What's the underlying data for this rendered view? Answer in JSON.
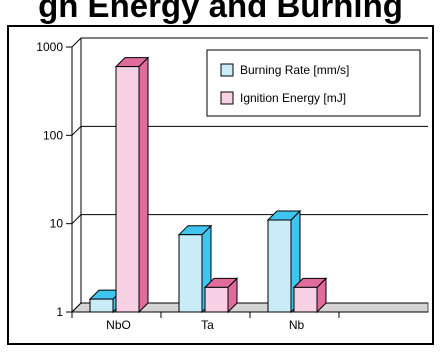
{
  "title_fragment": "gn  Energy and Burning",
  "colors": {
    "burning_front": "#c9ecf8",
    "burning_side": "#3fc5ef",
    "ignition_front": "#f8d2e4",
    "ignition_side": "#e06c9c",
    "floor": "#d4d4d4"
  },
  "chart_data": {
    "type": "bar",
    "scale": "log",
    "categories": [
      "NbO",
      "Ta",
      "Nb",
      ""
    ],
    "ylim": [
      1,
      1000
    ],
    "y_ticks": [
      "1",
      "10",
      "100",
      "1000"
    ],
    "grid": true,
    "legend_position": "top-right",
    "series": [
      {
        "name": "Burning Rate [mm/s]",
        "values": [
          1.4,
          7.5,
          11,
          null
        ]
      },
      {
        "name": "Ignition Energy [mJ]",
        "values": [
          600,
          1.9,
          1.9,
          null
        ]
      }
    ]
  }
}
